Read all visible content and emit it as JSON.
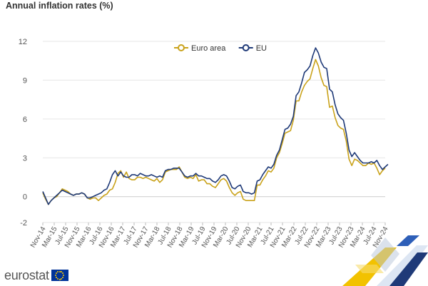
{
  "title": "Annual inflation rates (%)",
  "logo": {
    "text": "eurostat"
  },
  "colors": {
    "euro_area": "#c9a21a",
    "eu": "#1f3a78",
    "grid": "#e6e6e6",
    "axis_text": "#555555"
  },
  "chart_data": {
    "type": "line",
    "title": "Annual inflation rates (%)",
    "ylim": [
      -2,
      12
    ],
    "yticks": [
      -2,
      0,
      3,
      6,
      9,
      12
    ],
    "grid": true,
    "legend_position": "top-center",
    "x_tick_labels": [
      "Nov-14",
      "Mar-15",
      "Jul-15",
      "Nov-15",
      "Mar-16",
      "Jul-16",
      "Nov-16",
      "Mar-17",
      "Jul-17",
      "Nov-17",
      "Mar-18",
      "Jul-18",
      "Nov-18",
      "Mar-19",
      "Jul-19",
      "Nov-19",
      "Mar-20",
      "Jul-20",
      "Nov-20",
      "Mar-21",
      "Jul-21",
      "Nov-21",
      "Mar-22",
      "Jul-22",
      "Nov-22",
      "Mar-23",
      "Jul-23",
      "Nov-23",
      "Mar-24",
      "Jul-24",
      "Nov-24"
    ],
    "x_start": "Nov-14",
    "x_end": "Nov-24",
    "series": [
      {
        "name": "Euro area",
        "color": "#c9a21a",
        "values": [
          0.3,
          -0.2,
          -0.6,
          -0.3,
          -0.1,
          0.0,
          0.3,
          0.6,
          0.5,
          0.4,
          0.2,
          0.1,
          0.2,
          0.2,
          0.3,
          0.2,
          -0.1,
          -0.2,
          -0.1,
          -0.1,
          -0.3,
          -0.1,
          0.1,
          0.2,
          0.5,
          0.6,
          1.1,
          1.8,
          2.0,
          1.5,
          1.9,
          1.4,
          1.3,
          1.3,
          1.5,
          1.5,
          1.4,
          1.5,
          1.4,
          1.3,
          1.2,
          1.4,
          1.1,
          1.3,
          1.9,
          2.0,
          2.1,
          2.1,
          2.1,
          2.3,
          1.9,
          1.5,
          1.4,
          1.5,
          1.4,
          1.7,
          1.2,
          1.3,
          1.3,
          1.0,
          1.0,
          0.8,
          0.7,
          1.0,
          1.3,
          1.4,
          1.2,
          0.7,
          0.3,
          0.1,
          0.3,
          0.4,
          -0.2,
          -0.3,
          -0.3,
          -0.3,
          -0.3,
          0.9,
          0.9,
          1.3,
          1.6,
          2.0,
          1.9,
          2.2,
          3.0,
          3.4,
          4.1,
          4.9,
          5.0,
          5.1,
          5.9,
          7.4,
          7.4,
          8.1,
          8.6,
          8.9,
          9.1,
          9.9,
          10.6,
          10.1,
          9.2,
          8.6,
          8.5,
          6.9,
          7.0,
          6.1,
          5.5,
          5.3,
          5.2,
          4.3,
          2.9,
          2.4,
          2.9,
          2.8,
          2.6,
          2.4,
          2.4,
          2.6,
          2.5,
          2.6,
          2.2,
          1.7,
          2.0,
          2.2
        ]
      },
      {
        "name": "EU",
        "color": "#1f3a78",
        "values": [
          0.4,
          -0.1,
          -0.6,
          -0.3,
          -0.1,
          0.1,
          0.3,
          0.5,
          0.4,
          0.3,
          0.2,
          0.1,
          0.2,
          0.2,
          0.3,
          0.2,
          -0.1,
          -0.1,
          0.0,
          0.1,
          0.2,
          0.3,
          0.5,
          0.6,
          1.1,
          1.7,
          2.0,
          1.6,
          1.9,
          1.6,
          1.5,
          1.5,
          1.7,
          1.7,
          1.6,
          1.8,
          1.7,
          1.6,
          1.6,
          1.7,
          1.6,
          1.5,
          1.6,
          1.5,
          2.0,
          2.1,
          2.1,
          2.2,
          2.2,
          2.2,
          1.9,
          1.6,
          1.5,
          1.6,
          1.6,
          1.8,
          1.6,
          1.6,
          1.5,
          1.4,
          1.4,
          1.2,
          1.1,
          1.3,
          1.6,
          1.7,
          1.6,
          1.2,
          0.7,
          0.6,
          0.8,
          0.9,
          0.4,
          0.3,
          0.3,
          0.2,
          0.3,
          1.2,
          1.3,
          1.7,
          2.0,
          2.3,
          2.2,
          2.5,
          3.2,
          3.6,
          4.4,
          5.2,
          5.3,
          5.6,
          6.2,
          7.8,
          8.1,
          8.8,
          9.6,
          9.8,
          10.1,
          10.9,
          11.5,
          11.1,
          10.4,
          10.0,
          9.9,
          8.3,
          8.1,
          7.1,
          6.4,
          6.1,
          5.9,
          4.9,
          3.6,
          3.1,
          3.4,
          3.1,
          2.8,
          2.6,
          2.6,
          2.6,
          2.7,
          2.6,
          2.8,
          2.4,
          2.1,
          2.3,
          2.5
        ]
      }
    ]
  }
}
